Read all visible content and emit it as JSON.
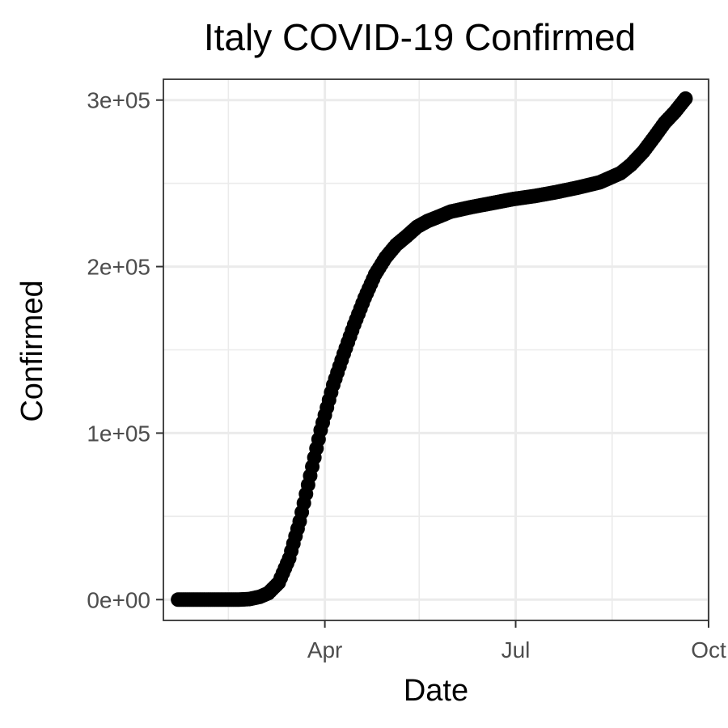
{
  "chart_data": {
    "type": "scatter",
    "title": "Italy COVID-19 Confirmed",
    "xlabel": "Date",
    "ylabel": "Confirmed",
    "x_start": "2020-01-22",
    "x_end": "2020-09-20",
    "xlim": [
      "2020-01-15",
      "2020-10-01"
    ],
    "ylim": [
      -12500,
      312500
    ],
    "x_ticks": [
      {
        "date": "2020-04-01",
        "label": "Apr"
      },
      {
        "date": "2020-07-01",
        "label": "Jul"
      },
      {
        "date": "2020-10-01",
        "label": "Oct"
      }
    ],
    "x_minor_ticks": [
      "2020-02-15",
      "2020-05-16",
      "2020-08-16"
    ],
    "y_ticks": [
      {
        "value": 0,
        "label": "0e+00"
      },
      {
        "value": 100000,
        "label": "1e+05"
      },
      {
        "value": 200000,
        "label": "2e+05"
      },
      {
        "value": 300000,
        "label": "3e+05"
      }
    ],
    "y_minor_ticks": [
      50000,
      150000,
      250000
    ],
    "grid": true,
    "legend": "none",
    "point_color": "#000000",
    "series": [
      {
        "x": [
          "2020-01-22",
          "2020-02-20",
          "2020-02-25",
          "2020-03-01",
          "2020-03-05",
          "2020-03-10",
          "2020-03-15",
          "2020-03-20",
          "2020-03-25",
          "2020-03-30",
          "2020-04-05",
          "2020-04-10",
          "2020-04-15",
          "2020-04-20",
          "2020-04-25",
          "2020-04-30",
          "2020-05-05",
          "2020-05-10",
          "2020-05-15",
          "2020-05-20",
          "2020-05-25",
          "2020-05-31",
          "2020-06-10",
          "2020-06-20",
          "2020-06-30",
          "2020-07-10",
          "2020-07-20",
          "2020-07-31",
          "2020-08-10",
          "2020-08-20",
          "2020-08-25",
          "2020-08-31",
          "2020-09-05",
          "2020-09-10",
          "2020-09-15",
          "2020-09-20"
        ],
        "y": [
          0,
          3,
          322,
          1694,
          3858,
          10149,
          24747,
          47021,
          74386,
          101739,
          128948,
          147577,
          165155,
          181228,
          195351,
          205463,
          213013,
          218268,
          223885,
          227364,
          229858,
          232997,
          235763,
          238159,
          240578,
          242363,
          244624,
          247537,
          250566,
          256118,
          261174,
          269214,
          277634,
          286297,
          293025,
          300897
        ]
      }
    ]
  }
}
